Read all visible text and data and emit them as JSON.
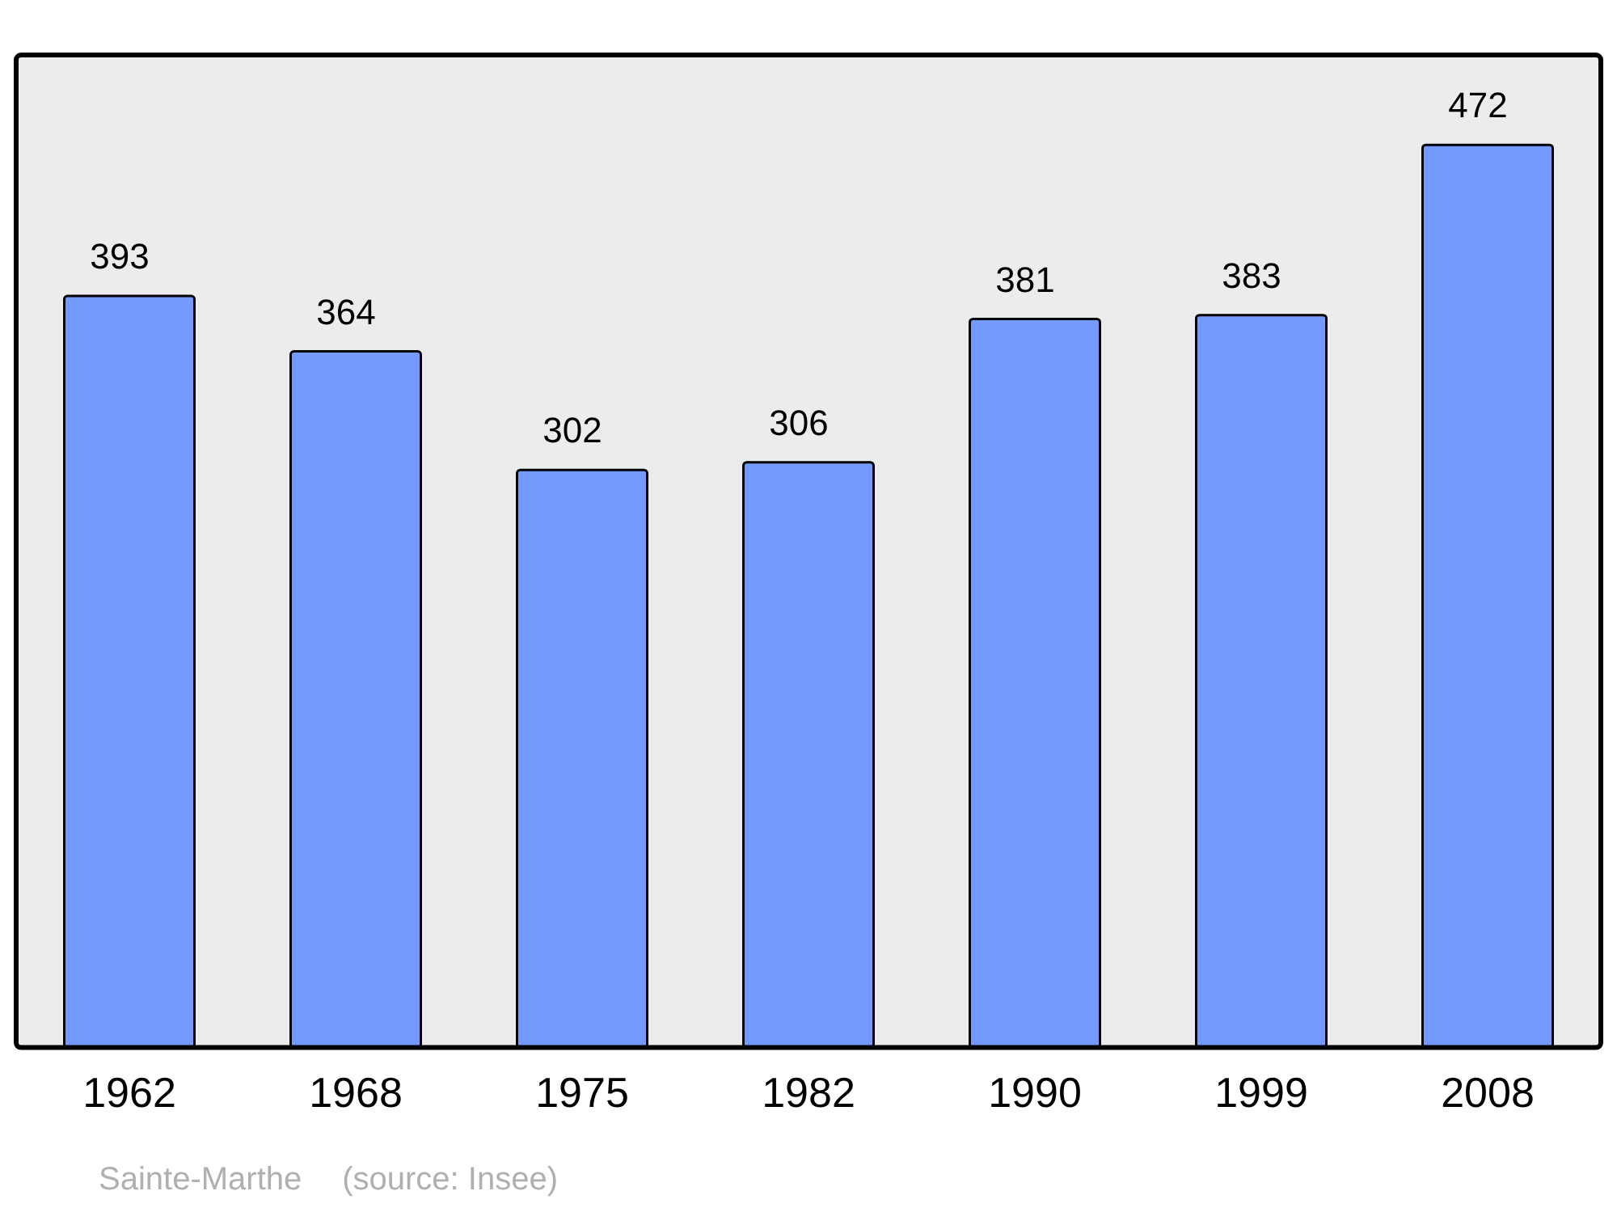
{
  "chart_data": {
    "type": "bar",
    "categories": [
      "1962",
      "1968",
      "1975",
      "1982",
      "1990",
      "1999",
      "2008"
    ],
    "values": [
      393,
      364,
      302,
      306,
      381,
      383,
      472
    ],
    "color": "#7499ff",
    "data_labels": true,
    "grid": false,
    "legend": false,
    "tick_labels": "x",
    "ylim": [
      0,
      519
    ],
    "annotations": [
      "Sainte-Marthe",
      "(source: Insee)"
    ]
  }
}
